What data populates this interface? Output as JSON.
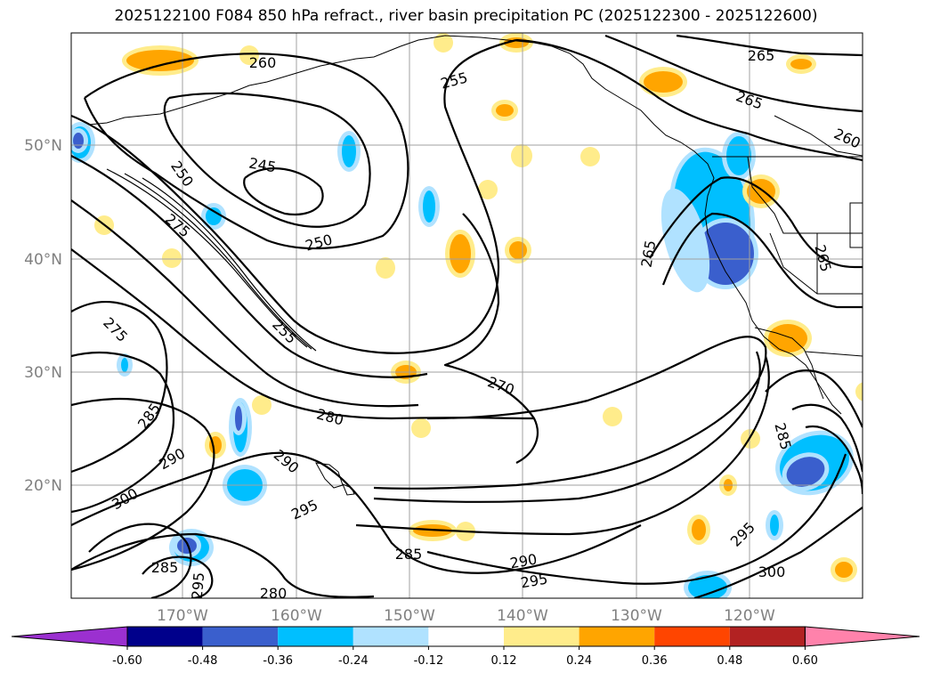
{
  "title": "2025122100 F084 850 hPa refract., river basin precipitation PC (2025122300 - 2025122600)",
  "latitude_labels": [
    "50°N",
    "40°N",
    "30°N",
    "20°N"
  ],
  "longitude_labels": [
    "170°W",
    "160°W",
    "150°W",
    "140°W",
    "130°W",
    "120°W"
  ],
  "contour_labels": [
    "260",
    "255",
    "265",
    "265",
    "260",
    "245",
    "250",
    "250",
    "275",
    "255",
    "265",
    "265",
    "275",
    "270",
    "280",
    "285",
    "290",
    "290",
    "300",
    "295",
    "285",
    "290",
    "295",
    "285",
    "295",
    "300",
    "280",
    "295",
    "285"
  ],
  "colorbar": {
    "ticks": [
      "-0.60",
      "-0.48",
      "-0.36",
      "-0.24",
      "-0.12",
      "0.12",
      "0.24",
      "0.36",
      "0.48",
      "0.60"
    ],
    "colors": [
      "#9b30d0",
      "#00008b",
      "#3a5fcd",
      "#00bfff",
      "#b0e2ff",
      "#ffffff",
      "#ffec8b",
      "#ffa500",
      "#ff4500",
      "#b22222",
      "#ff82ab"
    ]
  },
  "fill_colors": {
    "neg_light": "#b0e2ff",
    "neg_mid": "#00bfff",
    "neg_strong": "#3a5fcd",
    "pos_light": "#ffec8b",
    "pos_mid": "#ffa500"
  }
}
